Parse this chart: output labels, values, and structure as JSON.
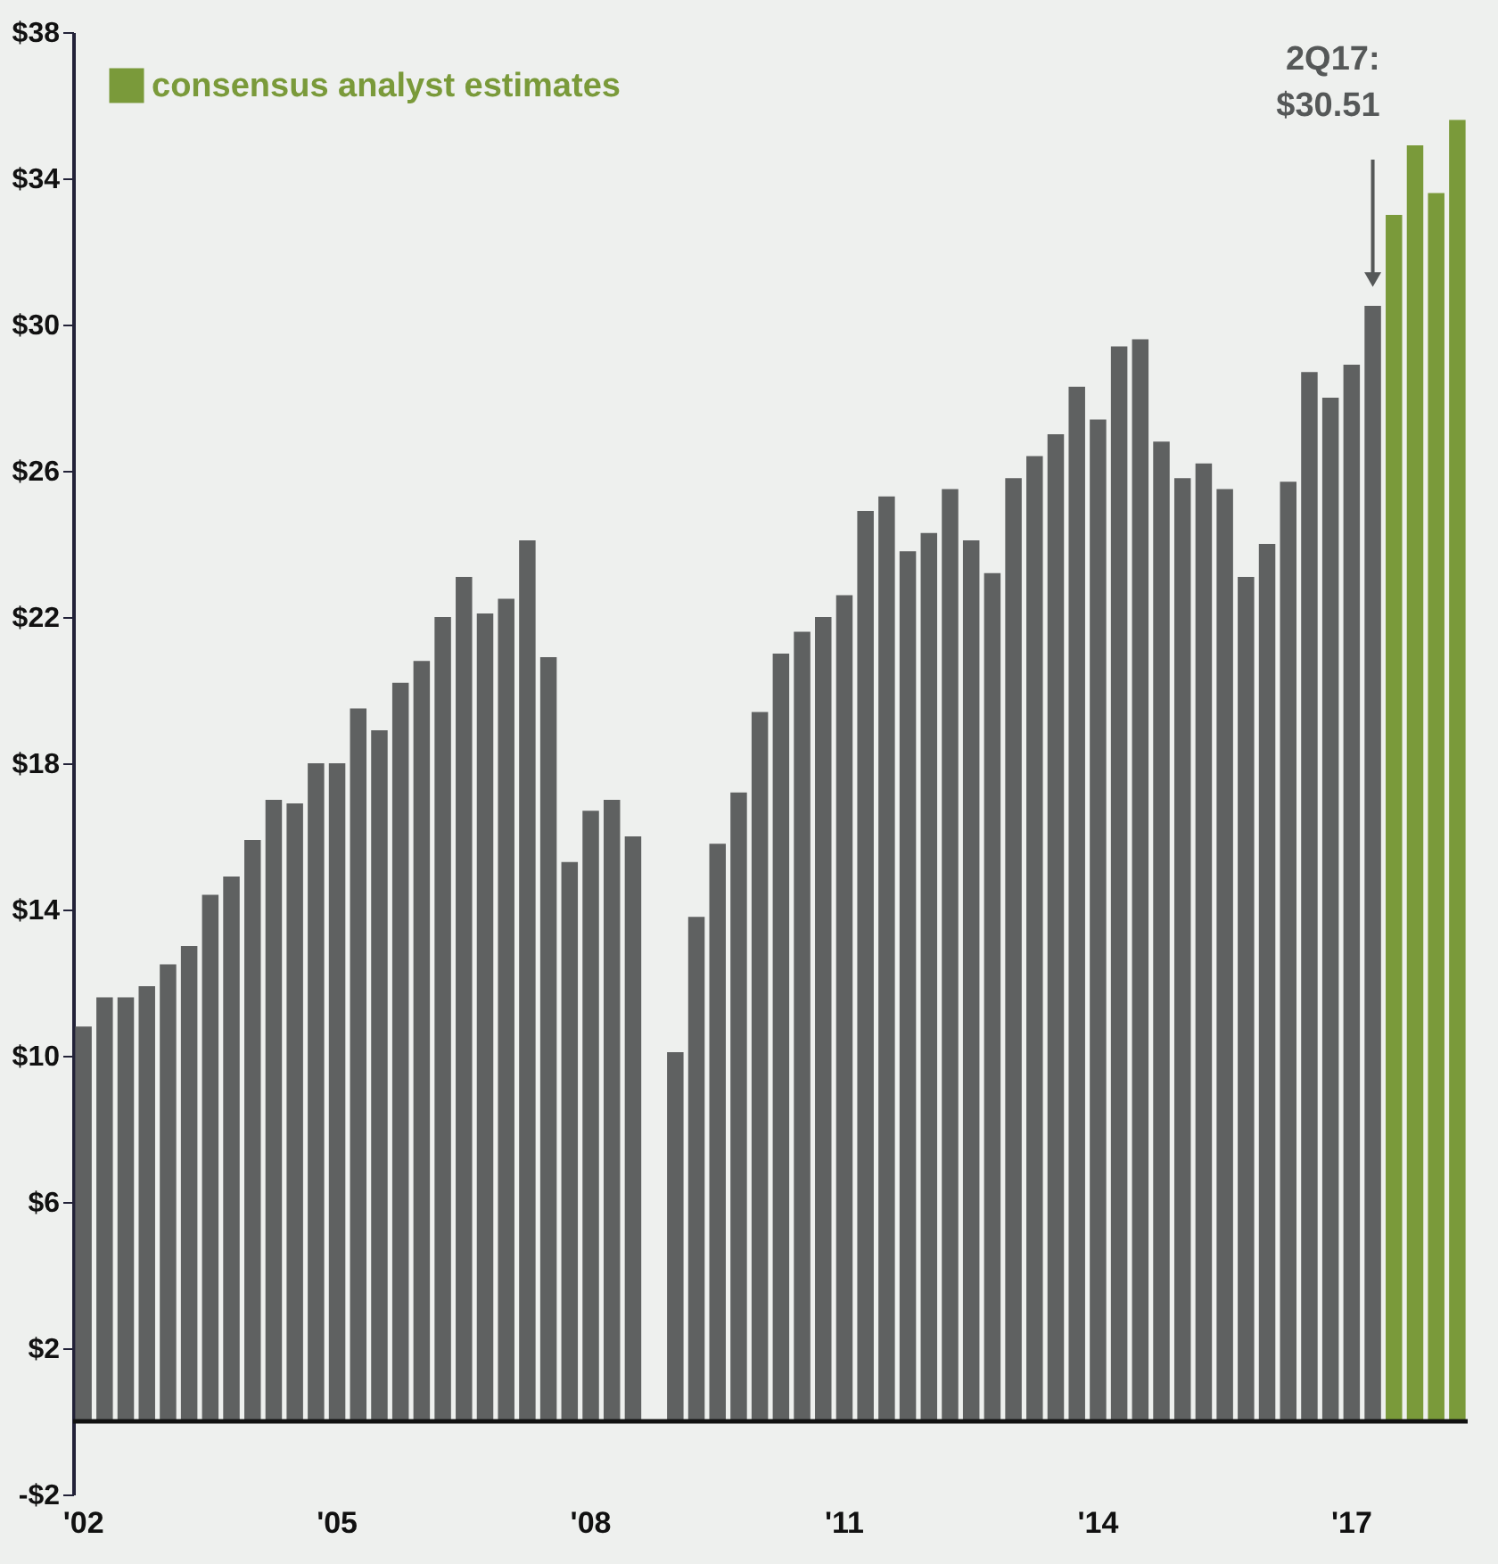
{
  "chart_data": {
    "type": "bar",
    "categories": [
      "'02",
      null,
      null,
      null,
      null,
      null,
      null,
      null,
      null,
      null,
      null,
      null,
      "'05",
      null,
      null,
      null,
      null,
      null,
      null,
      null,
      null,
      null,
      null,
      null,
      "'08",
      null,
      null,
      null,
      null,
      null,
      null,
      null,
      null,
      null,
      null,
      null,
      "'11",
      null,
      null,
      null,
      null,
      null,
      null,
      null,
      null,
      null,
      null,
      null,
      "'14",
      null,
      null,
      null,
      null,
      null,
      null,
      null,
      null,
      null,
      null,
      null,
      "'17",
      null,
      null,
      null,
      null,
      null
    ],
    "series": [
      {
        "color": "#5f6161",
        "values": [
          10.8,
          11.6,
          11.6,
          11.9,
          12.5,
          13.0,
          14.4,
          14.9,
          15.9,
          17.0,
          16.9,
          18.0,
          18.0,
          19.5,
          18.9,
          20.2,
          20.8,
          22.0,
          23.1,
          22.1,
          22.5,
          24.1,
          20.9,
          15.3,
          16.7,
          17.0,
          16.0,
          0,
          10.1,
          13.8,
          15.8,
          17.2,
          19.4,
          21.0,
          21.6,
          22.0,
          22.6,
          24.9,
          25.3,
          23.8,
          24.3,
          25.5,
          24.1,
          23.2,
          25.8,
          26.4,
          27.0,
          28.3,
          27.4,
          29.4,
          29.6,
          26.8,
          25.8,
          26.2,
          25.5,
          23.1,
          24.0,
          25.7,
          28.7,
          28.0,
          28.9,
          30.51,
          null,
          null,
          null,
          null
        ]
      },
      {
        "name": "consensus analyst estimates",
        "color": "#7a9a3a",
        "values": [
          null,
          null,
          null,
          null,
          null,
          null,
          null,
          null,
          null,
          null,
          null,
          null,
          null,
          null,
          null,
          null,
          null,
          null,
          null,
          null,
          null,
          null,
          null,
          null,
          null,
          null,
          null,
          null,
          null,
          null,
          null,
          null,
          null,
          null,
          null,
          null,
          null,
          null,
          null,
          null,
          null,
          null,
          null,
          null,
          null,
          null,
          null,
          null,
          null,
          null,
          null,
          null,
          null,
          null,
          null,
          null,
          null,
          null,
          null,
          null,
          null,
          null,
          33.0,
          34.9,
          33.6,
          35.6
        ]
      }
    ],
    "ylim": [
      -2,
      38
    ],
    "yticks": [
      {
        "value": -2,
        "label": "-$2"
      },
      {
        "value": 2,
        "label": "$2"
      },
      {
        "value": 6,
        "label": "$6"
      },
      {
        "value": 10,
        "label": "$10"
      },
      {
        "value": 14,
        "label": "$14"
      },
      {
        "value": 18,
        "label": "$18"
      },
      {
        "value": 22,
        "label": "$22"
      },
      {
        "value": 26,
        "label": "$26"
      },
      {
        "value": 30,
        "label": "$30"
      },
      {
        "value": 34,
        "label": "$34"
      },
      {
        "value": 38,
        "label": "$38"
      }
    ],
    "ref_lines": [
      {
        "axis": "y",
        "value": 0,
        "color": "#111111"
      }
    ],
    "annotations": [
      "2Q17: $30.51"
    ],
    "legend": "top left",
    "grid": false
  }
}
